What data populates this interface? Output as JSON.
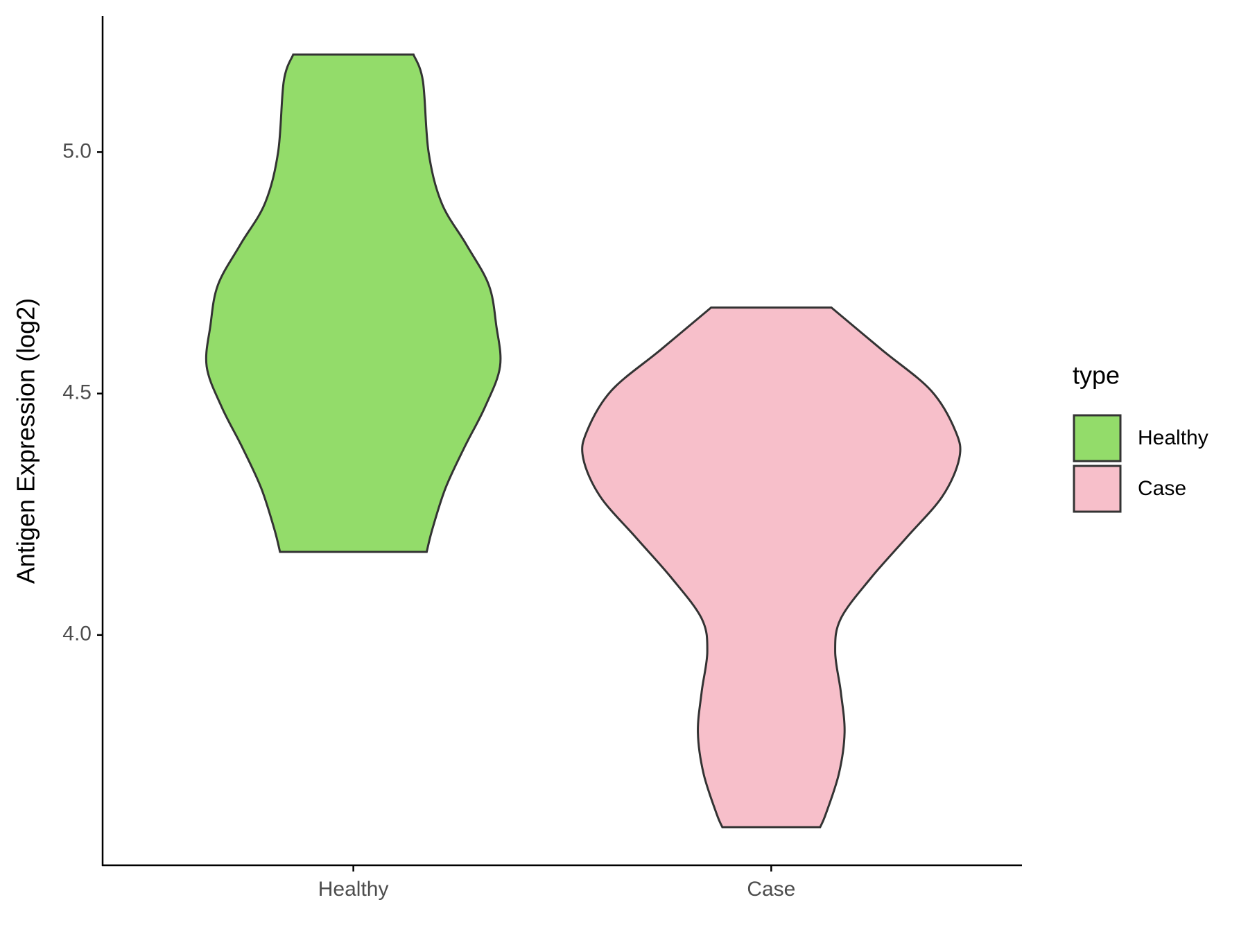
{
  "chart_data": {
    "type": "violin",
    "y_label": "Antigen Expression (log2)",
    "categories": [
      "Healthy",
      "Case"
    ],
    "ylim": [
      3.523,
      5.282
    ],
    "yticks": [
      {
        "value": 4.0,
        "label": "4.0"
      },
      {
        "value": 4.5,
        "label": "4.5"
      },
      {
        "value": 5.0,
        "label": "5.0"
      }
    ],
    "legend_title": "type",
    "legend_position": "right",
    "series": [
      {
        "name": "Healthy",
        "color": "#93dc6a",
        "y": [
          5.202,
          5.147,
          5.0,
          4.894,
          4.809,
          4.725,
          4.641,
          4.556,
          4.472,
          4.388,
          4.304,
          4.219,
          4.172
        ],
        "density": [
          0.32,
          0.37,
          0.4,
          0.47,
          0.6,
          0.72,
          0.76,
          0.78,
          0.7,
          0.59,
          0.49,
          0.42,
          0.39
        ]
      },
      {
        "name": "Case",
        "color": "#f7bfca",
        "y": [
          4.678,
          4.59,
          4.506,
          4.422,
          4.366,
          4.287,
          4.202,
          4.118,
          4.034,
          3.966,
          3.882,
          3.798,
          3.713,
          3.629,
          3.602
        ],
        "density": [
          0.32,
          0.59,
          0.85,
          0.98,
          1.0,
          0.91,
          0.72,
          0.53,
          0.37,
          0.34,
          0.37,
          0.39,
          0.36,
          0.29,
          0.26
        ]
      }
    ]
  }
}
